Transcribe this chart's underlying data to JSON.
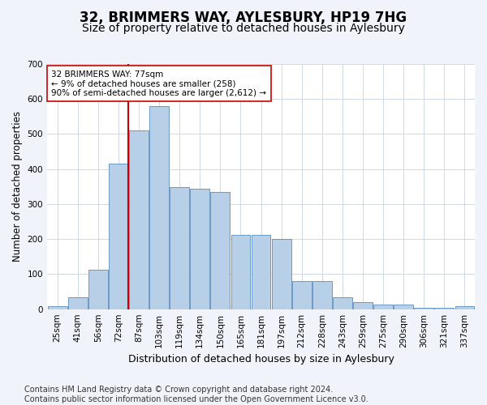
{
  "title": "32, BRIMMERS WAY, AYLESBURY, HP19 7HG",
  "subtitle": "Size of property relative to detached houses in Aylesbury",
  "xlabel": "Distribution of detached houses by size in Aylesbury",
  "ylabel": "Number of detached properties",
  "categories": [
    "25sqm",
    "41sqm",
    "56sqm",
    "72sqm",
    "87sqm",
    "103sqm",
    "119sqm",
    "134sqm",
    "150sqm",
    "165sqm",
    "181sqm",
    "197sqm",
    "212sqm",
    "228sqm",
    "243sqm",
    "259sqm",
    "275sqm",
    "290sqm",
    "306sqm",
    "321sqm",
    "337sqm"
  ],
  "values": [
    8,
    35,
    112,
    415,
    510,
    580,
    348,
    345,
    335,
    212,
    212,
    200,
    80,
    80,
    35,
    20,
    12,
    12,
    5,
    5,
    8
  ],
  "bar_color": "#b8cfe8",
  "bar_edge_color": "#5b8dc0",
  "vline_index": 3.5,
  "vline_color": "#cc0000",
  "annotation_text": "32 BRIMMERS WAY: 77sqm\n← 9% of detached houses are smaller (258)\n90% of semi-detached houses are larger (2,612) →",
  "annotation_box_color": "#ffffff",
  "annotation_box_edge": "#cc0000",
  "ylim": [
    0,
    700
  ],
  "yticks": [
    0,
    100,
    200,
    300,
    400,
    500,
    600,
    700
  ],
  "footer": "Contains HM Land Registry data © Crown copyright and database right 2024.\nContains public sector information licensed under the Open Government Licence v3.0.",
  "bg_color": "#f0f4fa",
  "plot_bg_color": "#ffffff",
  "title_fontsize": 12,
  "subtitle_fontsize": 10,
  "xlabel_fontsize": 9,
  "ylabel_fontsize": 8.5,
  "tick_fontsize": 7.5,
  "footer_fontsize": 7
}
